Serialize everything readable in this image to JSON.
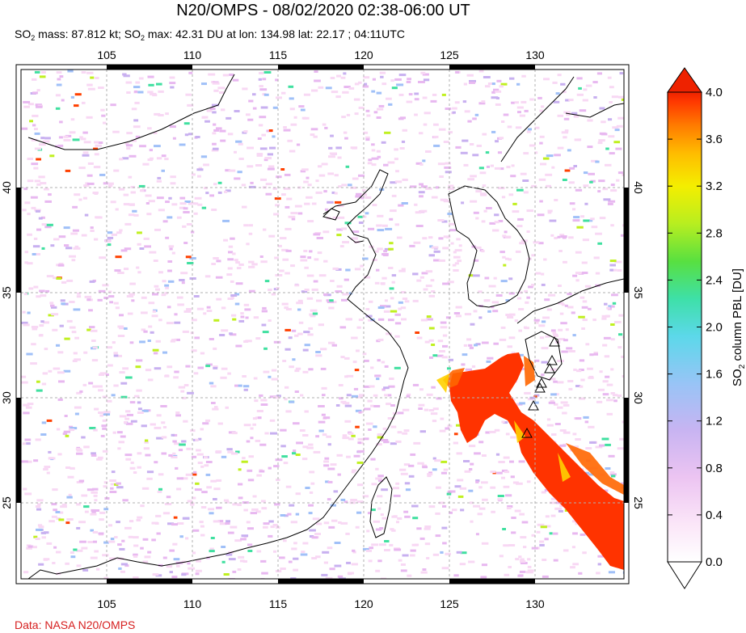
{
  "header": {
    "title": "N20/OMPS - 08/02/2020 02:38-06:00 UT",
    "subtitle_prefix": "SO",
    "subtitle_mid1": " mass: 87.812 kt; SO",
    "subtitle_rest": " max: 42.31 DU at lon: 134.98 lat: 22.17 ; 04:11UTC",
    "sub_2": "2"
  },
  "footer": {
    "source": "Data: NASA N20/OMPS"
  },
  "map": {
    "lon_ticks": [
      "105",
      "110",
      "115",
      "120",
      "125",
      "130"
    ],
    "lat_ticks": [
      "40",
      "35",
      "30",
      "25"
    ],
    "lon_range": [
      100.5,
      135.5
    ],
    "lat_range": [
      20.5,
      45.5
    ],
    "volcano_marker": "triangle-icon",
    "plume_color": "#ff3300"
  },
  "colorbar": {
    "label_prefix": "SO",
    "label_sub": "2",
    "label_suffix": " column PBL [DU]",
    "ticks": [
      "4.0",
      "3.6",
      "3.2",
      "2.8",
      "2.4",
      "2.0",
      "1.6",
      "1.2",
      "0.8",
      "0.4",
      "0.0"
    ],
    "range": [
      0.0,
      4.0
    ],
    "colors": [
      "#ffffff",
      "#f8d8f4",
      "#e8b8f0",
      "#c8b0f0",
      "#a0c0f8",
      "#60d8e8",
      "#40e0a0",
      "#60e040",
      "#c0f020",
      "#f8f000",
      "#ffc000",
      "#ff8000",
      "#ff4000",
      "#ee2000"
    ]
  }
}
